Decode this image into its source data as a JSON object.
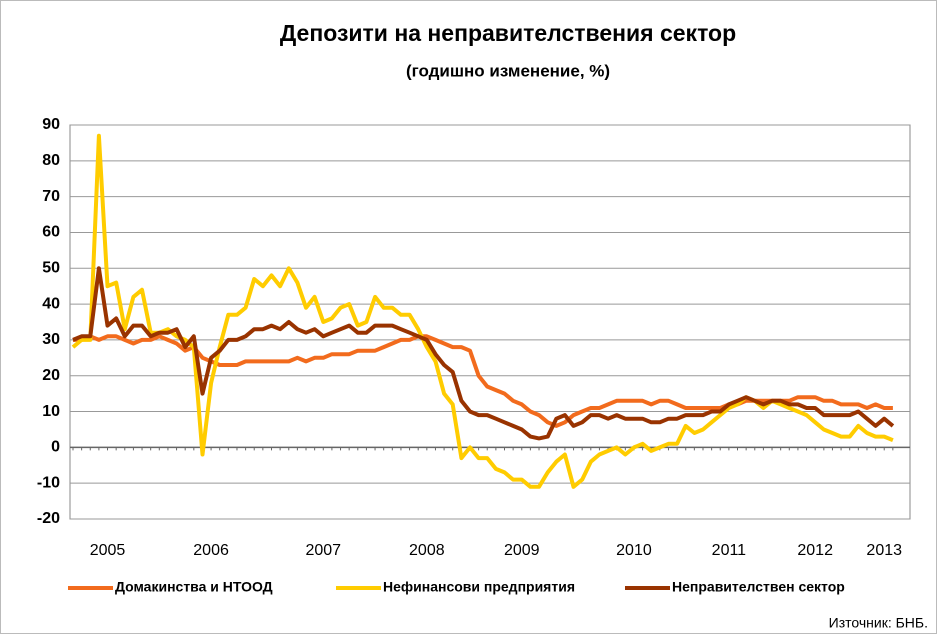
{
  "chart_data": {
    "type": "line",
    "title": "Депозити на неправителствения сектор",
    "subtitle": "(годишно изменение, %)",
    "source": "Източник: БНБ.",
    "categories": [
      null,
      null,
      null,
      null,
      "2005",
      null,
      null,
      null,
      null,
      null,
      null,
      null,
      null,
      null,
      null,
      null,
      "2006",
      null,
      null,
      null,
      null,
      null,
      null,
      null,
      null,
      null,
      null,
      null,
      null,
      "2007",
      null,
      null,
      null,
      null,
      null,
      null,
      null,
      null,
      null,
      null,
      null,
      "2008",
      null,
      null,
      null,
      null,
      null,
      null,
      null,
      null,
      null,
      null,
      "2009",
      null,
      null,
      null,
      null,
      null,
      null,
      null,
      null,
      null,
      null,
      null,
      null,
      "2010",
      null,
      null,
      null,
      null,
      null,
      null,
      null,
      null,
      null,
      null,
      "2011",
      null,
      null,
      null,
      null,
      null,
      null,
      null,
      null,
      null,
      "2012",
      null,
      null,
      null,
      null,
      null,
      null,
      null,
      "2013",
      null
    ],
    "series": [
      {
        "name": "Домакинства и НТООД",
        "color": "#f26b1d",
        "values": [
          30,
          30,
          31,
          30,
          31,
          31,
          30,
          29,
          30,
          30,
          31,
          30,
          29,
          27,
          28,
          25,
          24,
          23,
          23,
          23,
          24,
          24,
          24,
          24,
          24,
          24,
          25,
          24,
          25,
          25,
          26,
          26,
          26,
          27,
          27,
          27,
          28,
          29,
          30,
          30,
          31,
          31,
          30,
          29,
          28,
          28,
          27,
          20,
          17,
          16,
          15,
          13,
          12,
          10,
          9,
          7,
          6,
          7,
          9,
          10,
          11,
          11,
          12,
          13,
          13,
          13,
          13,
          12,
          13,
          13,
          12,
          11,
          11,
          11,
          11,
          11,
          12,
          12,
          13,
          13,
          13,
          13,
          13,
          13,
          14,
          14,
          14,
          13,
          13,
          12,
          12,
          12,
          11,
          12,
          11,
          11
        ]
      },
      {
        "name": "Нефинансови предприятия",
        "color": "#ffcc00",
        "values": [
          28,
          30,
          30,
          87,
          45,
          46,
          33,
          42,
          44,
          32,
          32,
          33,
          31,
          30,
          28,
          -2,
          18,
          28,
          37,
          37,
          39,
          47,
          45,
          48,
          45,
          50,
          46,
          39,
          42,
          35,
          36,
          39,
          40,
          34,
          35,
          42,
          39,
          39,
          37,
          37,
          33,
          28,
          24,
          15,
          12,
          -3,
          0,
          -3,
          -3,
          -6,
          -7,
          -9,
          -9,
          -11,
          -11,
          -7,
          -4,
          -2,
          -11,
          -9,
          -4,
          -2,
          -1,
          0,
          -2,
          0,
          1,
          -1,
          0,
          1,
          1,
          6,
          4,
          5,
          7,
          9,
          11,
          12,
          14,
          13,
          11,
          13,
          12,
          11,
          10,
          9,
          7,
          5,
          4,
          3,
          3,
          6,
          4,
          3,
          3,
          2
        ]
      },
      {
        "name": "Неправителствен сектор",
        "color": "#993300",
        "values": [
          30,
          31,
          31,
          50,
          34,
          36,
          31,
          34,
          34,
          31,
          32,
          32,
          33,
          28,
          31,
          15,
          25,
          27,
          30,
          30,
          31,
          33,
          33,
          34,
          33,
          35,
          33,
          32,
          33,
          31,
          32,
          33,
          34,
          32,
          32,
          34,
          34,
          34,
          33,
          32,
          31,
          30,
          26,
          23,
          21,
          13,
          10,
          9,
          9,
          8,
          7,
          6,
          5,
          3,
          2.5,
          3,
          8,
          9,
          6,
          7,
          9,
          9,
          8,
          9,
          8,
          8,
          8,
          7,
          7,
          8,
          8,
          9,
          9,
          9,
          10,
          10,
          12,
          13,
          14,
          13,
          12,
          13,
          13,
          12,
          12,
          11,
          11,
          9,
          9,
          9,
          9,
          10,
          8,
          6,
          8,
          6
        ]
      }
    ],
    "ylim": [
      -20,
      90
    ],
    "yticks": [
      -20,
      -10,
      0,
      10,
      20,
      30,
      40,
      50,
      60,
      70,
      80,
      90
    ],
    "grid": true
  }
}
